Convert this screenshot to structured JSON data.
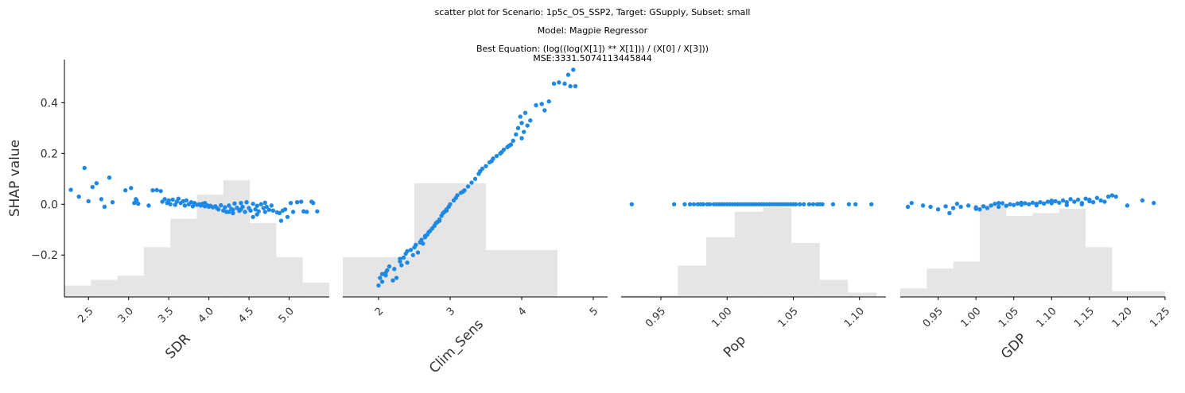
{
  "title": {
    "line1": "scatter plot for Scenario: 1p5c_OS_SSP2, Target: GSupply, Subset: small",
    "line2": "Model: Magpie Regressor",
    "line3": "Best Equation: (log((log(X[1]) ** X[1])) / (X[0] / X[3]))",
    "line4": "MSE:3331.5074113445844"
  },
  "colors": {
    "points": "#1e88e5",
    "hist": "#e5e5e5",
    "axis": "#000000"
  },
  "chart_data": [
    {
      "type": "scatter",
      "xlabel": "SDR",
      "ylabel": "SHAP value",
      "xlim": [
        2.2,
        5.5
      ],
      "ylim": [
        -0.365,
        0.57
      ],
      "xticks": [
        2.5,
        3.0,
        3.5,
        4.0,
        4.5,
        5.0
      ],
      "xtick_labels": [
        "2.5",
        "3.0",
        "3.5",
        "4.0",
        "4.5",
        "5.0"
      ],
      "yticks": [
        -0.2,
        0.0,
        0.2,
        0.4
      ],
      "ytick_labels": [
        "−0.2",
        "0.0",
        "0.2",
        "0.4"
      ],
      "hist": {
        "edges": [
          2.2,
          2.53,
          2.86,
          3.19,
          3.52,
          3.85,
          4.18,
          4.51,
          4.84,
          5.17,
          5.5
        ],
        "values": [
          0.08,
          0.12,
          0.15,
          0.35,
          0.55,
          0.72,
          0.82,
          0.52,
          0.28,
          0.1
        ]
      },
      "points": [
        [
          2.28,
          0.057
        ],
        [
          2.38,
          0.03
        ],
        [
          2.45,
          0.143
        ],
        [
          2.5,
          0.012
        ],
        [
          2.55,
          0.068
        ],
        [
          2.6,
          0.083
        ],
        [
          2.66,
          0.02
        ],
        [
          2.7,
          -0.01
        ],
        [
          2.76,
          0.105
        ],
        [
          2.8,
          0.008
        ],
        [
          2.96,
          0.055
        ],
        [
          3.03,
          0.064
        ],
        [
          3.07,
          0.005
        ],
        [
          3.09,
          0.02
        ],
        [
          3.1,
          0.015
        ],
        [
          3.12,
          0.002
        ],
        [
          3.25,
          -0.005
        ],
        [
          3.3,
          0.055
        ],
        [
          3.35,
          0.056
        ],
        [
          3.4,
          0.052
        ],
        [
          3.42,
          0.01
        ],
        [
          3.45,
          0.02
        ],
        [
          3.48,
          0.005
        ],
        [
          3.5,
          0.015
        ],
        [
          3.52,
          0.0
        ],
        [
          3.55,
          0.018
        ],
        [
          3.58,
          -0.002
        ],
        [
          3.6,
          0.01
        ],
        [
          3.62,
          0.022
        ],
        [
          3.65,
          0.005
        ],
        [
          3.68,
          0.012
        ],
        [
          3.7,
          -0.005
        ],
        [
          3.72,
          0.015
        ],
        [
          3.75,
          0.0
        ],
        [
          3.78,
          0.008
        ],
        [
          3.8,
          -0.008
        ],
        [
          3.82,
          0.005
        ],
        [
          3.85,
          -0.002
        ],
        [
          3.88,
          0.0
        ],
        [
          3.9,
          -0.005
        ],
        [
          3.92,
          0.002
        ],
        [
          3.95,
          -0.008
        ],
        [
          3.98,
          -0.004
        ],
        [
          4.0,
          -0.01
        ],
        [
          4.02,
          -0.006
        ],
        [
          4.05,
          -0.012
        ],
        [
          4.08,
          -0.008
        ],
        [
          4.1,
          -0.015
        ],
        [
          4.12,
          -0.02
        ],
        [
          4.15,
          -0.004
        ],
        [
          4.18,
          -0.025
        ],
        [
          4.2,
          -0.012
        ],
        [
          4.22,
          -0.03
        ],
        [
          4.25,
          -0.005
        ],
        [
          4.28,
          -0.018
        ],
        [
          4.3,
          -0.022
        ],
        [
          4.32,
          0.003
        ],
        [
          4.35,
          -0.014
        ],
        [
          4.38,
          -0.026
        ],
        [
          4.4,
          0.005
        ],
        [
          4.42,
          -0.01
        ],
        [
          4.45,
          -0.03
        ],
        [
          4.47,
          0.008
        ],
        [
          4.5,
          -0.015
        ],
        [
          4.52,
          -0.025
        ],
        [
          4.55,
          0.002
        ],
        [
          4.58,
          -0.02
        ],
        [
          4.6,
          -0.006
        ],
        [
          4.62,
          -0.028
        ],
        [
          4.65,
          0.0
        ],
        [
          4.68,
          -0.015
        ],
        [
          4.7,
          -0.03
        ],
        [
          4.72,
          -0.01
        ],
        [
          4.75,
          -0.022
        ],
        [
          4.78,
          -0.005
        ],
        [
          4.8,
          -0.025
        ],
        [
          4.55,
          -0.05
        ],
        [
          4.85,
          -0.032
        ],
        [
          4.88,
          -0.035
        ],
        [
          4.9,
          -0.065
        ],
        [
          4.92,
          -0.025
        ],
        [
          4.95,
          -0.02
        ],
        [
          4.98,
          -0.05
        ],
        [
          5.02,
          0.005
        ],
        [
          5.05,
          -0.03
        ],
        [
          5.1,
          0.008
        ],
        [
          5.15,
          0.01
        ],
        [
          5.18,
          -0.028
        ],
        [
          5.22,
          -0.03
        ],
        [
          5.28,
          0.01
        ],
        [
          5.3,
          0.005
        ],
        [
          5.35,
          -0.028
        ],
        [
          4.4,
          -0.02
        ],
        [
          4.3,
          -0.035
        ],
        [
          4.6,
          -0.04
        ],
        [
          4.25,
          -0.03
        ],
        [
          3.95,
          0.005
        ],
        [
          4.7,
          0.006
        ]
      ]
    },
    {
      "type": "scatter",
      "xlabel": "Clim_Sens",
      "xlim": [
        1.5,
        5.2
      ],
      "xticks": [
        2,
        3,
        4,
        5
      ],
      "xtick_labels": [
        "2",
        "3",
        "4",
        "5"
      ],
      "hist": {
        "edges": [
          1.5,
          2.5,
          3.5,
          4.5
        ],
        "values": [
          0.28,
          0.8,
          0.33
        ]
      },
      "points": [
        [
          2.0,
          -0.32
        ],
        [
          2.02,
          -0.29
        ],
        [
          2.05,
          -0.305
        ],
        [
          2.1,
          -0.28
        ],
        [
          2.12,
          -0.26
        ],
        [
          2.15,
          -0.245
        ],
        [
          2.2,
          -0.3
        ],
        [
          2.22,
          -0.255
        ],
        [
          2.25,
          -0.29
        ],
        [
          2.3,
          -0.225
        ],
        [
          2.32,
          -0.24
        ],
        [
          2.35,
          -0.21
        ],
        [
          2.38,
          -0.195
        ],
        [
          2.4,
          -0.23
        ],
        [
          2.45,
          -0.18
        ],
        [
          2.48,
          -0.2
        ],
        [
          2.5,
          -0.17
        ],
        [
          2.52,
          -0.16
        ],
        [
          2.55,
          -0.19
        ],
        [
          2.58,
          -0.15
        ],
        [
          2.6,
          -0.14
        ],
        [
          2.62,
          -0.155
        ],
        [
          2.65,
          -0.13
        ],
        [
          2.68,
          -0.12
        ],
        [
          2.7,
          -0.11
        ],
        [
          2.72,
          -0.105
        ],
        [
          2.75,
          -0.095
        ],
        [
          2.78,
          -0.085
        ],
        [
          2.8,
          -0.075
        ],
        [
          2.82,
          -0.07
        ],
        [
          2.85,
          -0.06
        ],
        [
          2.88,
          -0.045
        ],
        [
          2.9,
          -0.035
        ],
        [
          2.92,
          -0.03
        ],
        [
          2.95,
          -0.02
        ],
        [
          2.98,
          -0.01
        ],
        [
          3.0,
          0.0
        ],
        [
          3.05,
          0.015
        ],
        [
          3.08,
          0.025
        ],
        [
          3.1,
          0.035
        ],
        [
          3.15,
          0.045
        ],
        [
          3.2,
          0.055
        ],
        [
          3.25,
          0.07
        ],
        [
          3.3,
          0.085
        ],
        [
          3.35,
          0.1
        ],
        [
          3.4,
          0.12
        ],
        [
          3.45,
          0.14
        ],
        [
          3.5,
          0.15
        ],
        [
          3.55,
          0.165
        ],
        [
          3.6,
          0.18
        ],
        [
          3.65,
          0.19
        ],
        [
          3.7,
          0.2
        ],
        [
          3.75,
          0.215
        ],
        [
          3.8,
          0.225
        ],
        [
          3.85,
          0.235
        ],
        [
          3.88,
          0.25
        ],
        [
          3.92,
          0.275
        ],
        [
          3.95,
          0.3
        ],
        [
          3.98,
          0.345
        ],
        [
          4.0,
          0.32
        ],
        [
          4.03,
          0.285
        ],
        [
          4.05,
          0.36
        ],
        [
          4.08,
          0.31
        ],
        [
          4.12,
          0.33
        ],
        [
          4.2,
          0.39
        ],
        [
          4.28,
          0.395
        ],
        [
          4.32,
          0.37
        ],
        [
          4.38,
          0.405
        ],
        [
          4.45,
          0.475
        ],
        [
          4.52,
          0.48
        ],
        [
          4.6,
          0.475
        ],
        [
          4.65,
          0.51
        ],
        [
          4.68,
          0.465
        ],
        [
          4.72,
          0.53
        ],
        [
          4.75,
          0.465
        ],
        [
          2.1,
          -0.27
        ],
        [
          2.3,
          -0.215
        ],
        [
          2.65,
          -0.125
        ],
        [
          2.85,
          -0.065
        ],
        [
          3.18,
          0.05
        ],
        [
          3.42,
          0.13
        ],
        [
          3.72,
          0.205
        ],
        [
          3.82,
          0.23
        ],
        [
          4.0,
          0.26
        ],
        [
          3.58,
          0.17
        ],
        [
          2.95,
          -0.025
        ],
        [
          2.4,
          -0.185
        ],
        [
          2.05,
          -0.275
        ]
      ]
    },
    {
      "type": "scatter",
      "xlabel": "Pop",
      "xlim": [
        0.92,
        1.12
      ],
      "xticks": [
        0.95,
        1.0,
        1.05,
        1.1
      ],
      "xtick_labels": [
        "0.95",
        "1.00",
        "1.05",
        "1.10"
      ],
      "hist": {
        "edges": [
          0.92,
          0.9414,
          0.9629,
          0.9843,
          1.0057,
          1.0271,
          1.0486,
          1.07,
          1.0914,
          1.1129
        ],
        "values": [
          0.01,
          0.01,
          0.22,
          0.42,
          0.6,
          0.63,
          0.38,
          0.12,
          0.03
        ]
      },
      "points": [
        [
          0.928,
          0
        ],
        [
          0.96,
          0
        ],
        [
          0.968,
          0
        ],
        [
          0.972,
          0
        ],
        [
          0.975,
          0
        ],
        [
          0.978,
          0
        ],
        [
          0.98,
          0
        ],
        [
          0.982,
          0
        ],
        [
          0.985,
          0
        ],
        [
          0.987,
          0
        ],
        [
          0.99,
          0
        ],
        [
          0.992,
          0
        ],
        [
          0.994,
          0
        ],
        [
          0.996,
          0
        ],
        [
          0.998,
          0
        ],
        [
          1.0,
          0
        ],
        [
          1.002,
          0
        ],
        [
          1.004,
          0
        ],
        [
          1.006,
          0
        ],
        [
          1.008,
          0
        ],
        [
          1.01,
          0
        ],
        [
          1.012,
          0
        ],
        [
          1.014,
          0
        ],
        [
          1.016,
          0
        ],
        [
          1.018,
          0
        ],
        [
          1.02,
          0
        ],
        [
          1.022,
          0
        ],
        [
          1.024,
          0
        ],
        [
          1.026,
          0
        ],
        [
          1.028,
          0
        ],
        [
          1.03,
          0
        ],
        [
          1.032,
          0
        ],
        [
          1.034,
          0
        ],
        [
          1.036,
          0
        ],
        [
          1.038,
          0
        ],
        [
          1.04,
          0
        ],
        [
          1.042,
          0
        ],
        [
          1.044,
          0
        ],
        [
          1.046,
          0
        ],
        [
          1.048,
          0
        ],
        [
          1.05,
          0
        ],
        [
          1.052,
          0
        ],
        [
          1.055,
          0
        ],
        [
          1.058,
          0
        ],
        [
          1.062,
          0
        ],
        [
          1.065,
          0
        ],
        [
          1.068,
          0
        ],
        [
          1.07,
          0
        ],
        [
          1.072,
          0
        ],
        [
          1.08,
          0
        ],
        [
          1.092,
          0
        ],
        [
          1.097,
          0
        ],
        [
          1.109,
          0
        ]
      ]
    },
    {
      "type": "scatter",
      "xlabel": "GDP",
      "xlim": [
        0.9,
        1.25
      ],
      "xticks": [
        0.95,
        1.0,
        1.05,
        1.1,
        1.15,
        1.2,
        1.25
      ],
      "xtick_labels": [
        "0.95",
        "1.00",
        "1.05",
        "1.10",
        "1.15",
        "1.20",
        "1.25"
      ],
      "hist": {
        "edges": [
          0.9,
          0.935,
          0.97,
          1.005,
          1.04,
          1.075,
          1.11,
          1.145,
          1.18,
          1.215,
          1.25
        ],
        "values": [
          0.06,
          0.2,
          0.25,
          0.65,
          0.57,
          0.59,
          0.62,
          0.35,
          0.04,
          0.04
        ]
      },
      "points": [
        [
          0.91,
          -0.01
        ],
        [
          0.915,
          0.005
        ],
        [
          0.93,
          -0.005
        ],
        [
          0.94,
          -0.01
        ],
        [
          0.95,
          -0.02
        ],
        [
          0.96,
          -0.008
        ],
        [
          0.965,
          -0.035
        ],
        [
          0.97,
          -0.015
        ],
        [
          0.975,
          0.002
        ],
        [
          0.98,
          -0.01
        ],
        [
          0.99,
          -0.005
        ],
        [
          1.0,
          -0.012
        ],
        [
          1.005,
          -0.02
        ],
        [
          1.01,
          -0.008
        ],
        [
          1.015,
          -0.015
        ],
        [
          1.02,
          -0.005
        ],
        [
          1.025,
          0.002
        ],
        [
          1.03,
          -0.01
        ],
        [
          1.035,
          0.004
        ],
        [
          1.04,
          -0.006
        ],
        [
          1.045,
          0.0
        ],
        [
          1.05,
          -0.003
        ],
        [
          1.055,
          0.003
        ],
        [
          1.06,
          -0.002
        ],
        [
          1.065,
          0.004
        ],
        [
          1.07,
          0.0
        ],
        [
          1.075,
          0.006
        ],
        [
          1.08,
          0.002
        ],
        [
          1.085,
          0.008
        ],
        [
          1.09,
          0.003
        ],
        [
          1.095,
          0.01
        ],
        [
          1.1,
          0.004
        ],
        [
          1.105,
          0.012
        ],
        [
          1.11,
          0.006
        ],
        [
          1.115,
          0.015
        ],
        [
          1.12,
          0.008
        ],
        [
          1.125,
          0.02
        ],
        [
          1.13,
          0.01
        ],
        [
          1.135,
          0.018
        ],
        [
          1.14,
          0.005
        ],
        [
          1.145,
          0.022
        ],
        [
          1.15,
          0.012
        ],
        [
          1.155,
          0.008
        ],
        [
          1.16,
          0.025
        ],
        [
          1.165,
          0.015
        ],
        [
          1.17,
          0.01
        ],
        [
          1.175,
          0.03
        ],
        [
          1.18,
          0.035
        ],
        [
          1.185,
          0.03
        ],
        [
          1.2,
          -0.005
        ],
        [
          1.22,
          0.015
        ],
        [
          1.235,
          0.005
        ],
        [
          1.12,
          -0.003
        ],
        [
          1.14,
          0.0
        ],
        [
          1.08,
          -0.004
        ],
        [
          1.06,
          0.006
        ],
        [
          1.03,
          0.005
        ],
        [
          1.1,
          0.014
        ],
        [
          1.15,
          0.018
        ],
        [
          1.0,
          -0.018
        ]
      ]
    }
  ]
}
